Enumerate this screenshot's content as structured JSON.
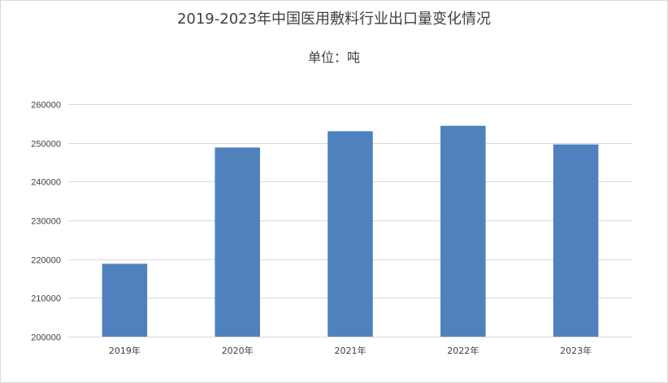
{
  "chart_data": {
    "type": "bar",
    "title": "2019-2023年中国医用敷料行业出口量变化情况",
    "subtitle": "单位：吨",
    "categories": [
      "2019年",
      "2020年",
      "2021年",
      "2022年",
      "2023年"
    ],
    "values": [
      218800,
      248800,
      253000,
      254400,
      249600
    ],
    "ylim": [
      200000,
      260000
    ],
    "yticks": [
      200000,
      210000,
      220000,
      230000,
      240000,
      250000,
      260000
    ],
    "bar_color": "#4f81bd",
    "grid": true,
    "legend": "none"
  }
}
